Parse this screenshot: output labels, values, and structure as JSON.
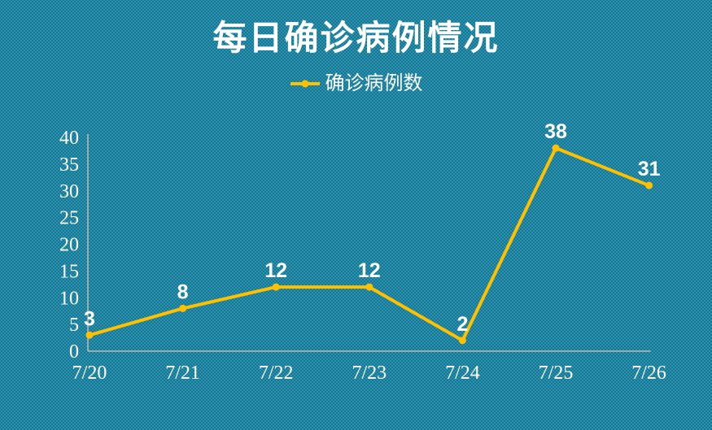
{
  "title": "每日确诊病例情况",
  "legend": {
    "label": "确诊病例数"
  },
  "chart_data": {
    "type": "line",
    "title": "每日确诊病例情况",
    "x": [
      "7/20",
      "7/21",
      "7/22",
      "7/23",
      "7/24",
      "7/25",
      "7/26"
    ],
    "series": [
      {
        "name": "确诊病例数",
        "values": [
          3,
          8,
          12,
          12,
          2,
          38,
          31
        ]
      }
    ],
    "ylim": [
      0,
      40
    ],
    "yticks": [
      0,
      5,
      10,
      15,
      20,
      25,
      30,
      35,
      40
    ],
    "grid": false,
    "legend_position": "top",
    "data_labels_shown": true,
    "colors": {
      "line": "#FFC000",
      "marker": "#FFC000",
      "axis": "#BFBDB3",
      "text": "#FFFFFF",
      "background": "#0E65C3",
      "background_dots": "#3EB26A"
    }
  }
}
